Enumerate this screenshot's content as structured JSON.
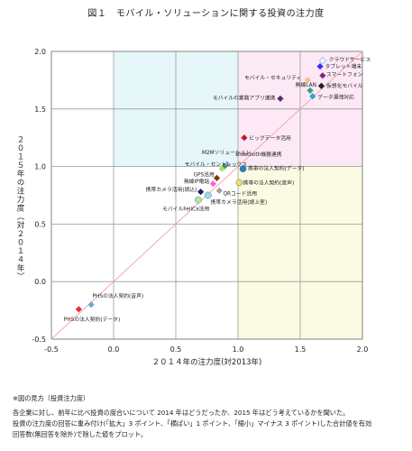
{
  "chart_data": {
    "type": "scatter",
    "title": "図１　モバイル・ソリューションに関する投資の注力度",
    "xlabel": "２０１４年の注力度(対2013年)",
    "ylabel": "２０１５年の注力度（対２０１４年）",
    "xlim": [
      -0.5,
      2.0
    ],
    "ylim": [
      -0.5,
      2.0
    ],
    "xticks": [
      "-0.5",
      "0.0",
      "0.5",
      "1.0",
      "1.5",
      "2.0"
    ],
    "yticks": [
      "-0.5",
      "0.0",
      "0.5",
      "1.0",
      "1.5",
      "2.0"
    ],
    "grid": true,
    "diagonal_reference_line": true,
    "quadrant_colors": {
      "top_left": "#e6f7fa",
      "top_right": "#fce9f5",
      "bottom_right": "#fbfbe3",
      "bottom_left": "#ffffff"
    },
    "diagonal_color": "#f4a9a9",
    "points": [
      {
        "label": "クラウドサービス",
        "x": 1.68,
        "y": 1.92,
        "color": "#a9b8ff",
        "marker": "diamond-open"
      },
      {
        "label": "タブレット端末",
        "x": 1.66,
        "y": 1.87,
        "color": "#3a2cff",
        "marker": "diamond"
      },
      {
        "label": "スマートフォン",
        "x": 1.68,
        "y": 1.79,
        "color": "#8a1f8a",
        "marker": "diamond"
      },
      {
        "label": "モバイル・セキュリティ",
        "x": 1.56,
        "y": 1.75,
        "color": "#f0c080",
        "marker": "diamond"
      },
      {
        "label": "無線LAN",
        "x": 1.67,
        "y": 1.7,
        "color": "#222222",
        "marker": "diamond"
      },
      {
        "label": "仮想化モバイル",
        "x": 1.58,
        "y": 1.66,
        "color": "#2aa87a",
        "marker": "diamond"
      },
      {
        "label": "モバイルの業務アプリ連携",
        "x": 1.34,
        "y": 1.59,
        "color": "#5b2a7a",
        "marker": "diamond"
      },
      {
        "label": "データ漏洩対応",
        "x": 1.6,
        "y": 1.61,
        "color": "#2aa8c0",
        "marker": "diamond"
      },
      {
        "label": "ビッグデータ活用",
        "x": 1.05,
        "y": 1.25,
        "color": "#c0182a",
        "marker": "diamond"
      },
      {
        "label": "Bluetooth機器連携",
        "x": 0.91,
        "y": 1.02,
        "color": "#b8a0ff",
        "marker": "diamond"
      },
      {
        "label": "M2Mソリューション",
        "x": 0.89,
        "y": 1.0,
        "color": "#30a040",
        "marker": "diamond"
      },
      {
        "label": "モバイル・セントレックス",
        "x": 0.87,
        "y": 0.98,
        "color": "#a8e078",
        "marker": "diamond"
      },
      {
        "label": "携帯の法人契約(データ)",
        "x": 1.04,
        "y": 0.98,
        "color": "#2880c8",
        "marker": "circle"
      },
      {
        "label": "GPS活用",
        "x": 0.83,
        "y": 0.9,
        "color": "#7a3a10",
        "marker": "diamond"
      },
      {
        "label": "携帯の法人契約(音声)",
        "x": 1.01,
        "y": 0.86,
        "color": "#e8e060",
        "marker": "circle"
      },
      {
        "label": "無線IP電話",
        "x": 0.8,
        "y": 0.85,
        "color": "#ff5fd0",
        "marker": "diamond"
      },
      {
        "label": "携帯カメラ活用(読込)",
        "x": 0.7,
        "y": 0.78,
        "color": "#222060",
        "marker": "diamond"
      },
      {
        "label": "QRコード活用",
        "x": 0.85,
        "y": 0.79,
        "color": "#a0a0a0",
        "marker": "diamond"
      },
      {
        "label": "携帯カメラ活用(読上室)",
        "x": 0.76,
        "y": 0.75,
        "color": "#90e0e8",
        "marker": "circle"
      },
      {
        "label": "モバイルFeliCa活用",
        "x": 0.68,
        "y": 0.71,
        "color": "#a8e8a8",
        "marker": "circle"
      },
      {
        "label": "PHSの法人契約(音声)",
        "x": -0.18,
        "y": -0.2,
        "color": "#6aa8e0",
        "marker": "diamond"
      },
      {
        "label": "PHSの法人契約(データ)",
        "x": -0.28,
        "y": -0.24,
        "color": "#e83030",
        "marker": "diamond"
      }
    ],
    "point_labels": [
      {
        "text": "クラウドサービス",
        "x": 1.73,
        "y": 1.935,
        "anchor": "start"
      },
      {
        "text": "タブレット端末",
        "x": 1.7,
        "y": 1.875,
        "anchor": "start"
      },
      {
        "text": "スマートフォン",
        "x": 1.71,
        "y": 1.805,
        "anchor": "start"
      },
      {
        "text": "モバイル・セキュリティ",
        "x": 1.51,
        "y": 1.775,
        "anchor": "end"
      },
      {
        "text": "無線LAN",
        "x": 1.63,
        "y": 1.715,
        "anchor": "end"
      },
      {
        "text": "仮想化モバイル",
        "x": 1.71,
        "y": 1.705,
        "anchor": "start"
      },
      {
        "text": "データ漏洩対応",
        "x": 1.64,
        "y": 1.61,
        "anchor": "start"
      },
      {
        "text": "モバイルの業務アプリ連携",
        "x": 1.3,
        "y": 1.6,
        "anchor": "end"
      },
      {
        "text": "ビッグデータ活用",
        "x": 1.09,
        "y": 1.25,
        "anchor": "start"
      },
      {
        "text": "M2Mソリューション",
        "x": 0.71,
        "y": 1.125,
        "anchor": "start"
      },
      {
        "text": "Bluetooth機器連携",
        "x": 0.98,
        "y": 1.11,
        "anchor": "start"
      },
      {
        "text": "モバイル・セントレックス",
        "x": 0.57,
        "y": 1.025,
        "anchor": "start"
      },
      {
        "text": "携帯の法人契約(データ)",
        "x": 1.08,
        "y": 0.99,
        "anchor": "start"
      },
      {
        "text": "GPS活用",
        "x": 0.81,
        "y": 0.935,
        "anchor": "end"
      },
      {
        "text": "無線IP電話",
        "x": 0.77,
        "y": 0.875,
        "anchor": "end"
      },
      {
        "text": "携帯の法人契約(音声)",
        "x": 1.04,
        "y": 0.865,
        "anchor": "start"
      },
      {
        "text": "携帯カメラ活用(読込)",
        "x": 0.67,
        "y": 0.805,
        "anchor": "end"
      },
      {
        "text": "QRコード活用",
        "x": 0.88,
        "y": 0.77,
        "anchor": "start"
      },
      {
        "text": "携帯カメラ活用(読上室)",
        "x": 0.78,
        "y": 0.695,
        "anchor": "start"
      },
      {
        "text": "モバイルFeliCa活用",
        "x": 0.77,
        "y": 0.635,
        "anchor": "end"
      },
      {
        "text": "PHSの法人契約(音声)",
        "x": -0.17,
        "y": -0.12,
        "anchor": "start"
      },
      {
        "text": "PHSの法人契約(データ)",
        "x": -0.4,
        "y": -0.325,
        "anchor": "start"
      }
    ]
  },
  "notes": {
    "heading": "※図の見方（投資注力度）",
    "line1": "各企業に対し、前年に比べ投資の度合いについて 2014 年はどうだったか、2015 年はどう考えているかを聞いた。",
    "line2": "投資の注力度の回答に重み付け(「拡大」3 ポイント、「横ばい」1 ポイント、「縮小」マイナス 3 ポイント)した合計値を有効",
    "line3": "回答数(無回答を除外)で除した値をプロット。"
  }
}
